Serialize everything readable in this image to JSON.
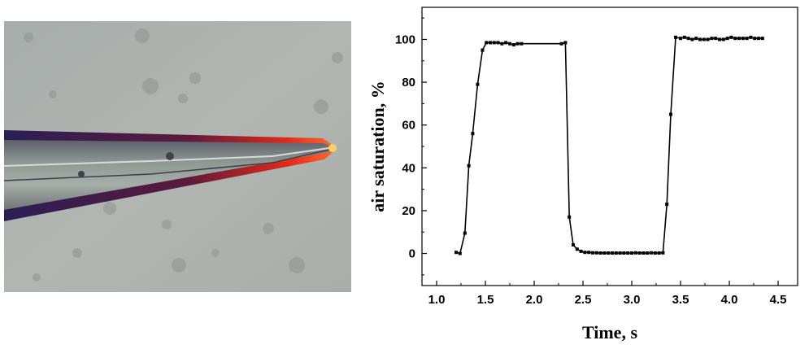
{
  "chart_data": {
    "type": "line",
    "title": "",
    "xlabel": "Time, s",
    "ylabel": "air saturation, %",
    "xlim": [
      0.85,
      4.7
    ],
    "ylim": [
      -15,
      115
    ],
    "xticks": [
      1.0,
      1.5,
      2.0,
      2.5,
      3.0,
      3.5,
      4.0,
      4.5
    ],
    "xtick_labels": [
      "1.0",
      "1.5",
      "2.0",
      "2.5",
      "3.0",
      "3.5",
      "4.0",
      "4.5"
    ],
    "yticks": [
      0,
      20,
      40,
      60,
      80,
      100
    ],
    "ytick_labels": [
      "0",
      "20",
      "40",
      "60",
      "80",
      "100"
    ],
    "grid": false,
    "legend": "none",
    "series": [
      {
        "color": "#000000",
        "marker": "square",
        "x": [
          1.2,
          1.24,
          1.29,
          1.33,
          1.37,
          1.42,
          1.47,
          1.51,
          1.55,
          1.59,
          1.63,
          1.67,
          1.71,
          1.75,
          1.79,
          1.83,
          1.87,
          2.28,
          2.32,
          2.36,
          2.4,
          2.44,
          2.48,
          2.52,
          2.56,
          2.6,
          2.64,
          2.68,
          2.72,
          2.76,
          2.8,
          2.84,
          2.88,
          2.92,
          2.96,
          3.0,
          3.04,
          3.08,
          3.12,
          3.16,
          3.2,
          3.24,
          3.28,
          3.32,
          3.36,
          3.4,
          3.45,
          3.5,
          3.54,
          3.58,
          3.62,
          3.66,
          3.7,
          3.74,
          3.78,
          3.82,
          3.86,
          3.9,
          3.94,
          3.98,
          4.02,
          4.06,
          4.1,
          4.14,
          4.18,
          4.22,
          4.26,
          4.3,
          4.34
        ],
        "y": [
          0.5,
          0,
          9.5,
          41,
          56,
          79,
          95,
          98.5,
          98.5,
          98.5,
          98.5,
          98,
          98.5,
          98,
          97.5,
          98,
          98,
          98,
          98.5,
          17,
          4,
          2,
          1,
          0.5,
          0.5,
          0.3,
          0.3,
          0.2,
          0.2,
          0.2,
          0.2,
          0.2,
          0.2,
          0.2,
          0.2,
          0.2,
          0.3,
          0.2,
          0.2,
          0.2,
          0.3,
          0.2,
          0.2,
          0.3,
          23,
          65,
          101,
          100.5,
          101,
          100.5,
          100,
          100.5,
          100,
          100,
          100,
          100.5,
          100.5,
          100,
          100,
          100.5,
          101,
          100.5,
          100.5,
          100.5,
          100.5,
          101,
          100.5,
          100.5,
          100.5
        ]
      }
    ]
  }
}
